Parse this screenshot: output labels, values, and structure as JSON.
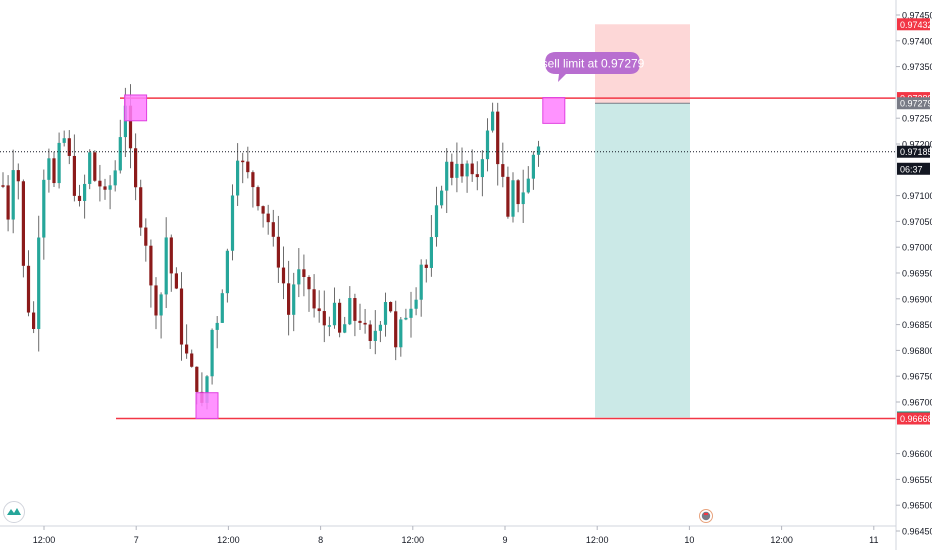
{
  "chart_data": {
    "type": "candlestick",
    "price_axis": {
      "ticks": [
        "0.97450",
        "0.97400",
        "0.97350",
        "0.97250",
        "0.97200",
        "0.97100",
        "0.97050",
        "0.97000",
        "0.96950",
        "0.96900",
        "0.96850",
        "0.96800",
        "0.96750",
        "0.96700",
        "0.96600",
        "0.96550",
        "0.96500",
        "0.96450"
      ],
      "range": [
        0.9643,
        0.9748
      ]
    },
    "time_axis": {
      "ticks": [
        "12:00",
        "7",
        "12:00",
        "8",
        "12:00",
        "9",
        "12:00",
        "10",
        "12:00",
        "11"
      ]
    },
    "levels": {
      "resistance": 0.97289,
      "support": 0.96668,
      "sell_limit": 0.97279,
      "current": 0.97185,
      "target": 0.9667,
      "stop": 0.97432
    },
    "price_labels": [
      {
        "text": "0.97432",
        "value": 0.97432,
        "color": "#f23645"
      },
      {
        "text": "0.97289",
        "value": 0.97289,
        "color": "#f23645"
      },
      {
        "text": "0.97279",
        "value": 0.97279,
        "color": "#787b86"
      },
      {
        "text": "0.97185",
        "value": 0.97185,
        "color": "#131722"
      },
      {
        "text": "06:37",
        "value": 0.97152,
        "color": "#131722"
      },
      {
        "text": "0.96670",
        "value": 0.9667,
        "color": "#089981"
      },
      {
        "text": "0.96668",
        "value": 0.96668,
        "color": "#f23645"
      }
    ],
    "annotation": "sell limit at 0.97279",
    "colors": {
      "up": "#26a69a",
      "down": "#8b1a1a",
      "level_line": "#f23645",
      "marker": "#ff80ff",
      "profit_zone": "#cbe9e7",
      "loss_zone": "#fdd7d7",
      "callout": "#b86ed0"
    },
    "price_path": [
      0.9712,
      0.9706,
      0.9716,
      0.9713,
      0.9696,
      0.9688,
      0.9684,
      0.9703,
      0.9714,
      0.9718,
      0.9712,
      0.9719,
      0.9721,
      0.9717,
      0.9711,
      0.9708,
      0.9712,
      0.9718,
      0.9713,
      0.9712,
      0.971,
      0.9712,
      0.9715,
      0.9722,
      0.9728,
      0.9718,
      0.9711,
      0.9705,
      0.9701,
      0.9692,
      0.9688,
      0.9691,
      0.9702,
      0.9695,
      0.9691,
      0.9682,
      0.9679,
      0.9676,
      0.9673,
      0.9669,
      0.9675,
      0.9684,
      0.9686,
      0.9692,
      0.9699,
      0.9711,
      0.9718,
      0.9716,
      0.9714,
      0.9712,
      0.9709,
      0.9707,
      0.9705,
      0.9701,
      0.9697,
      0.9693,
      0.9687,
      0.9693,
      0.9695,
      0.9693,
      0.9692,
      0.9688,
      0.9687,
      0.9685,
      0.9686,
      0.9688,
      0.9683,
      0.9685,
      0.9689,
      0.9686,
      0.9686,
      0.9684,
      0.9681,
      0.9684,
      0.9686,
      0.969,
      0.9688,
      0.968,
      0.9685,
      0.9687,
      0.9689,
      0.9691,
      0.9697,
      0.9696,
      0.9701,
      0.9707,
      0.9712,
      0.9716,
      0.9714,
      0.9717,
      0.9713,
      0.9716,
      0.9713,
      0.9714,
      0.9718,
      0.9722,
      0.9726,
      0.9717,
      0.9713,
      0.9705,
      0.9712,
      0.9709,
      0.9711,
      0.9713,
      0.9718,
      0.972
    ],
    "markers": [
      {
        "time_index": 26,
        "price_low": 0.97245,
        "price_high": 0.97295
      },
      {
        "time_index": 40,
        "price_low": 0.96668,
        "price_high": 0.96718
      },
      {
        "time_index": 108,
        "price_low": 0.9724,
        "price_high": 0.9729
      }
    ]
  },
  "ui": {
    "logo_icon": "tradingview-logo-icon",
    "event_flag_icon": "event-flag-icon"
  }
}
